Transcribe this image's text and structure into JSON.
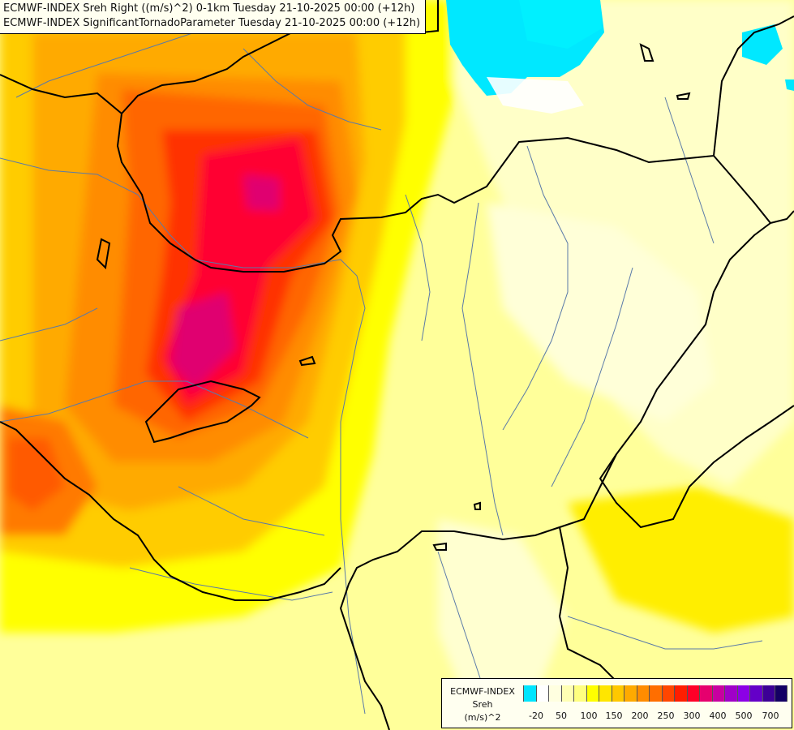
{
  "title": {
    "line1": "ECMWF-INDEX Sreh Right ((m/s)^2) 0-1km Tuesday 21-10-2025 00:00 (+12h)",
    "line2": "ECMWF-INDEX SignificantTornadoParameter Tuesday 21-10-2025 00:00 (+12h)"
  },
  "legend": {
    "source": "ECMWF-INDEX",
    "variable": "Sreh",
    "unit": "(m/s)^2",
    "swatch_colors": [
      "#00e5ff",
      "#ffffff",
      "#ffffe0",
      "#ffffb4",
      "#ffff80",
      "#ffff00",
      "#ffe600",
      "#ffc800",
      "#ffaa00",
      "#ff8c00",
      "#ff6e00",
      "#ff4600",
      "#ff1e00",
      "#ff0028",
      "#e6006e",
      "#c800a0",
      "#a000c8",
      "#8c00e6",
      "#6400c8",
      "#3c0096",
      "#140064"
    ],
    "tick_labels": [
      "-20",
      "50",
      "100",
      "150",
      "200",
      "250",
      "300",
      "400",
      "500",
      "700"
    ]
  },
  "map_colors": {
    "background": "#ffffa8",
    "negative": "#00e5ff",
    "border_line": "#000000",
    "river_line": "#5a7aa8"
  }
}
